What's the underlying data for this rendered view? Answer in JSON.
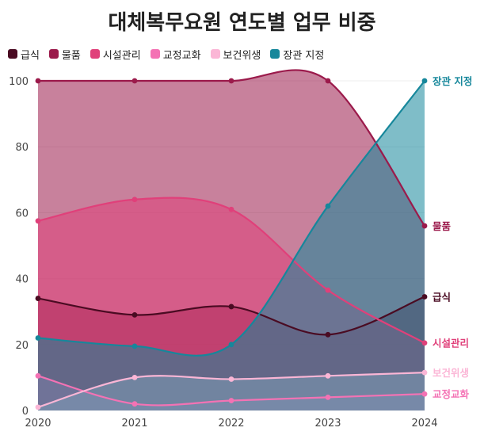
{
  "chart_data": {
    "type": "area",
    "title": "대체복무요원 연도별 업무 비중",
    "xlabel": "",
    "ylabel": "",
    "categories": [
      "2020",
      "2021",
      "2022",
      "2023",
      "2024"
    ],
    "ylim": [
      0,
      100
    ],
    "yticks": [
      0,
      20,
      40,
      60,
      80,
      100
    ],
    "grid": true,
    "legend_position": "top-left",
    "series": [
      {
        "name": "급식",
        "color": "#4a0b22",
        "values": [
          34,
          29,
          31.5,
          23,
          34.5
        ]
      },
      {
        "name": "물품",
        "color": "#9b1a4b",
        "values": [
          100,
          100,
          100,
          100,
          56
        ]
      },
      {
        "name": "시설관리",
        "color": "#e0407a",
        "values": [
          57.5,
          64,
          61,
          36.5,
          20.5
        ]
      },
      {
        "name": "교정교화",
        "color": "#f472b4",
        "values": [
          10.5,
          2,
          3,
          4,
          5
        ]
      },
      {
        "name": "보건위생",
        "color": "#fbb6d6",
        "values": [
          1,
          10,
          9.5,
          10.5,
          11.5
        ]
      },
      {
        "name": "장관 지정",
        "color": "#16879b",
        "values": [
          22,
          19.5,
          20,
          62,
          100
        ]
      }
    ]
  }
}
